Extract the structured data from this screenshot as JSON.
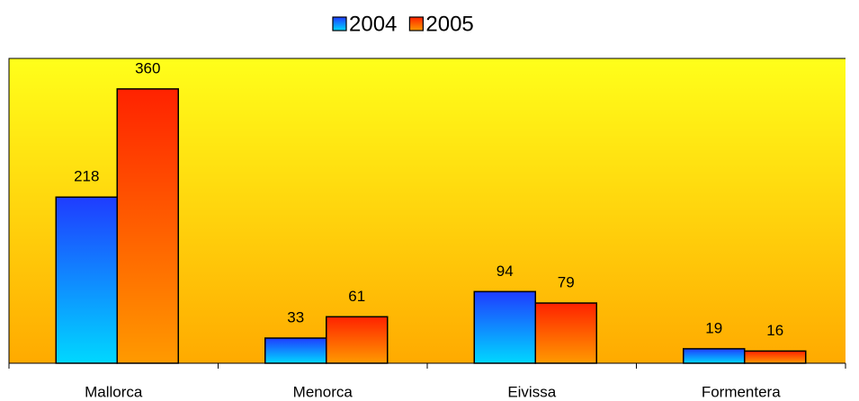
{
  "chart_data": {
    "type": "bar",
    "categories": [
      "Mallorca",
      "Menorca",
      "Eivissa",
      "Formentera"
    ],
    "series": [
      {
        "name": "2004",
        "color": "#1f3cff",
        "values": [
          218,
          33,
          94,
          19
        ]
      },
      {
        "name": "2005",
        "color": "#ff2200",
        "values": [
          360,
          61,
          79,
          16
        ]
      }
    ],
    "ylim": [
      0,
      400
    ],
    "legend": "top"
  }
}
